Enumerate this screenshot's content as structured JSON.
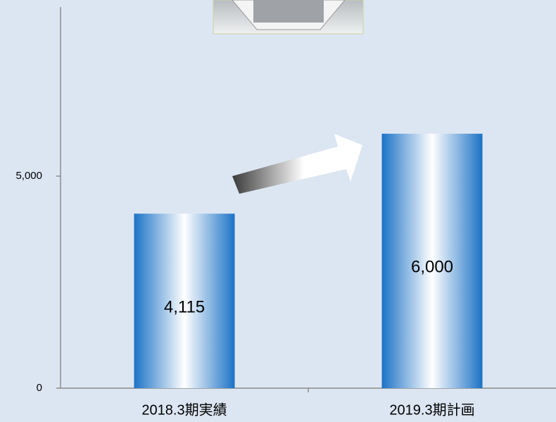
{
  "chart_data": {
    "type": "bar",
    "categories": [
      "2018.3期実績",
      "2019.3期計画"
    ],
    "values": [
      4115,
      6000
    ],
    "value_labels": [
      "4,115",
      "6,000"
    ],
    "color": "#1b72c6",
    "ylim": [
      0,
      9000
    ],
    "yticks": [
      0,
      {
        "value": 5000,
        "label": "5,000"
      }
    ],
    "grid": false
  }
}
